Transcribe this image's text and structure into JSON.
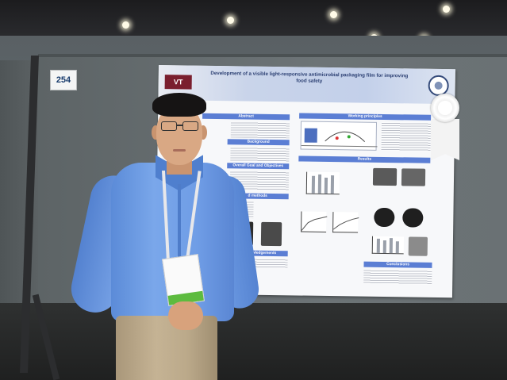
{
  "scene": {
    "booth_number": "254",
    "poster": {
      "title": "Development of a visible light-responsive antimicrobial packaging film for improving food safety",
      "sections": {
        "abstract": "Abstract",
        "background": "Background",
        "overall_goal": "Overall Goal and Objectives",
        "methods": "d methods",
        "acknowledgements": "Acknowledgements",
        "working_principles": "Working principles",
        "results": "Results",
        "conclusions": "Conclusions"
      }
    },
    "colors": {
      "poster_header": "#c3d0ea",
      "section_bar": "#5b7ed4",
      "shirt": "#6f9de6",
      "badge_strip": "#5dbb3f"
    }
  }
}
